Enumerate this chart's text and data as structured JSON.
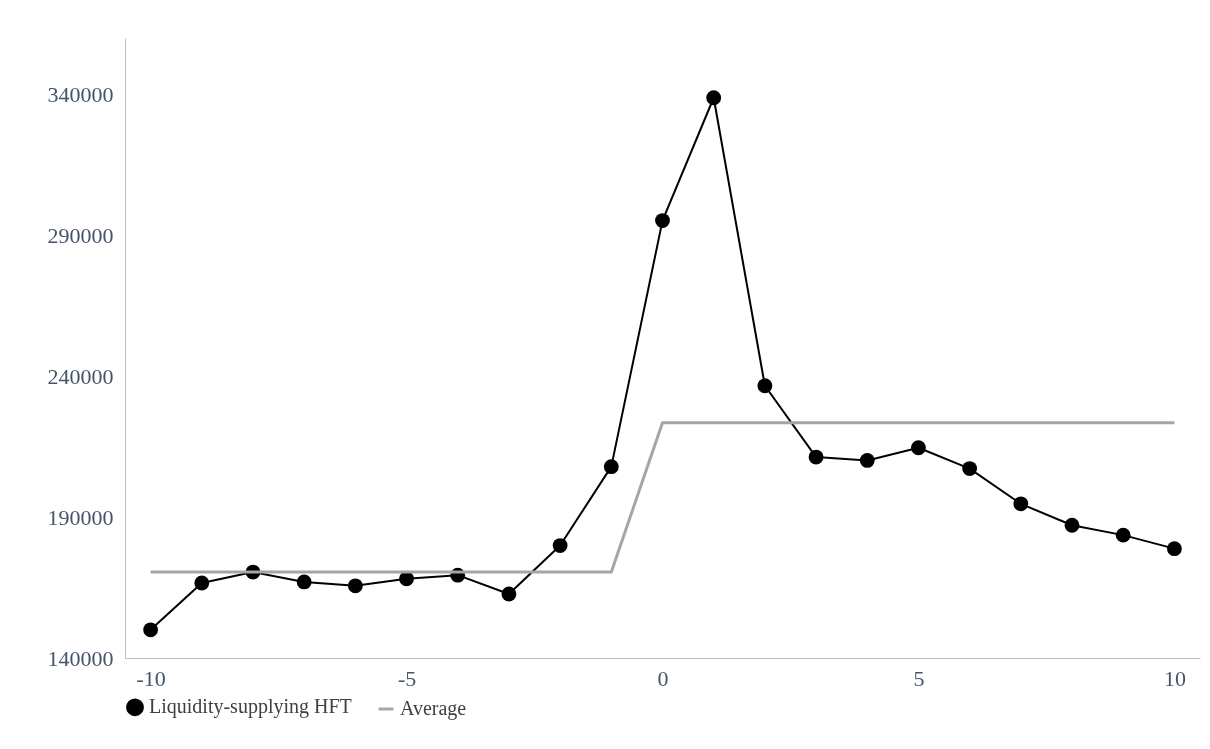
{
  "chart_data": {
    "type": "line",
    "x": [
      -10,
      -9,
      -8,
      -7,
      -6,
      -5,
      -4,
      -3,
      -2,
      -1,
      0,
      1,
      2,
      3,
      4,
      5,
      6,
      7,
      8,
      9,
      10
    ],
    "series": [
      {
        "name": "Liquidity-supplying HFT",
        "color": "#000000",
        "marker": "circle",
        "values": [
          150000,
          166600,
          170500,
          167000,
          165600,
          168100,
          169400,
          162700,
          179900,
          207900,
          295200,
          338800,
          236600,
          211300,
          210100,
          214600,
          207200,
          194700,
          187100,
          183600,
          178800
        ]
      },
      {
        "name": "Average",
        "color": "#a5a5a5",
        "marker": "none",
        "values": [
          170500,
          170500,
          170500,
          170500,
          170500,
          170500,
          170500,
          170500,
          170500,
          170500,
          223500,
          223500,
          223500,
          223500,
          223500,
          223500,
          223500,
          223500,
          223500,
          223500,
          223500
        ]
      }
    ],
    "xlim": [
      -10.5,
      10.5
    ],
    "xticks": [
      -10,
      -5,
      0,
      5,
      10
    ],
    "ylim": [
      140000,
      360000
    ],
    "yticks": [
      140000,
      190000,
      240000,
      290000,
      340000
    ],
    "grid": false,
    "legend": "bottom",
    "line_style": "solid"
  }
}
